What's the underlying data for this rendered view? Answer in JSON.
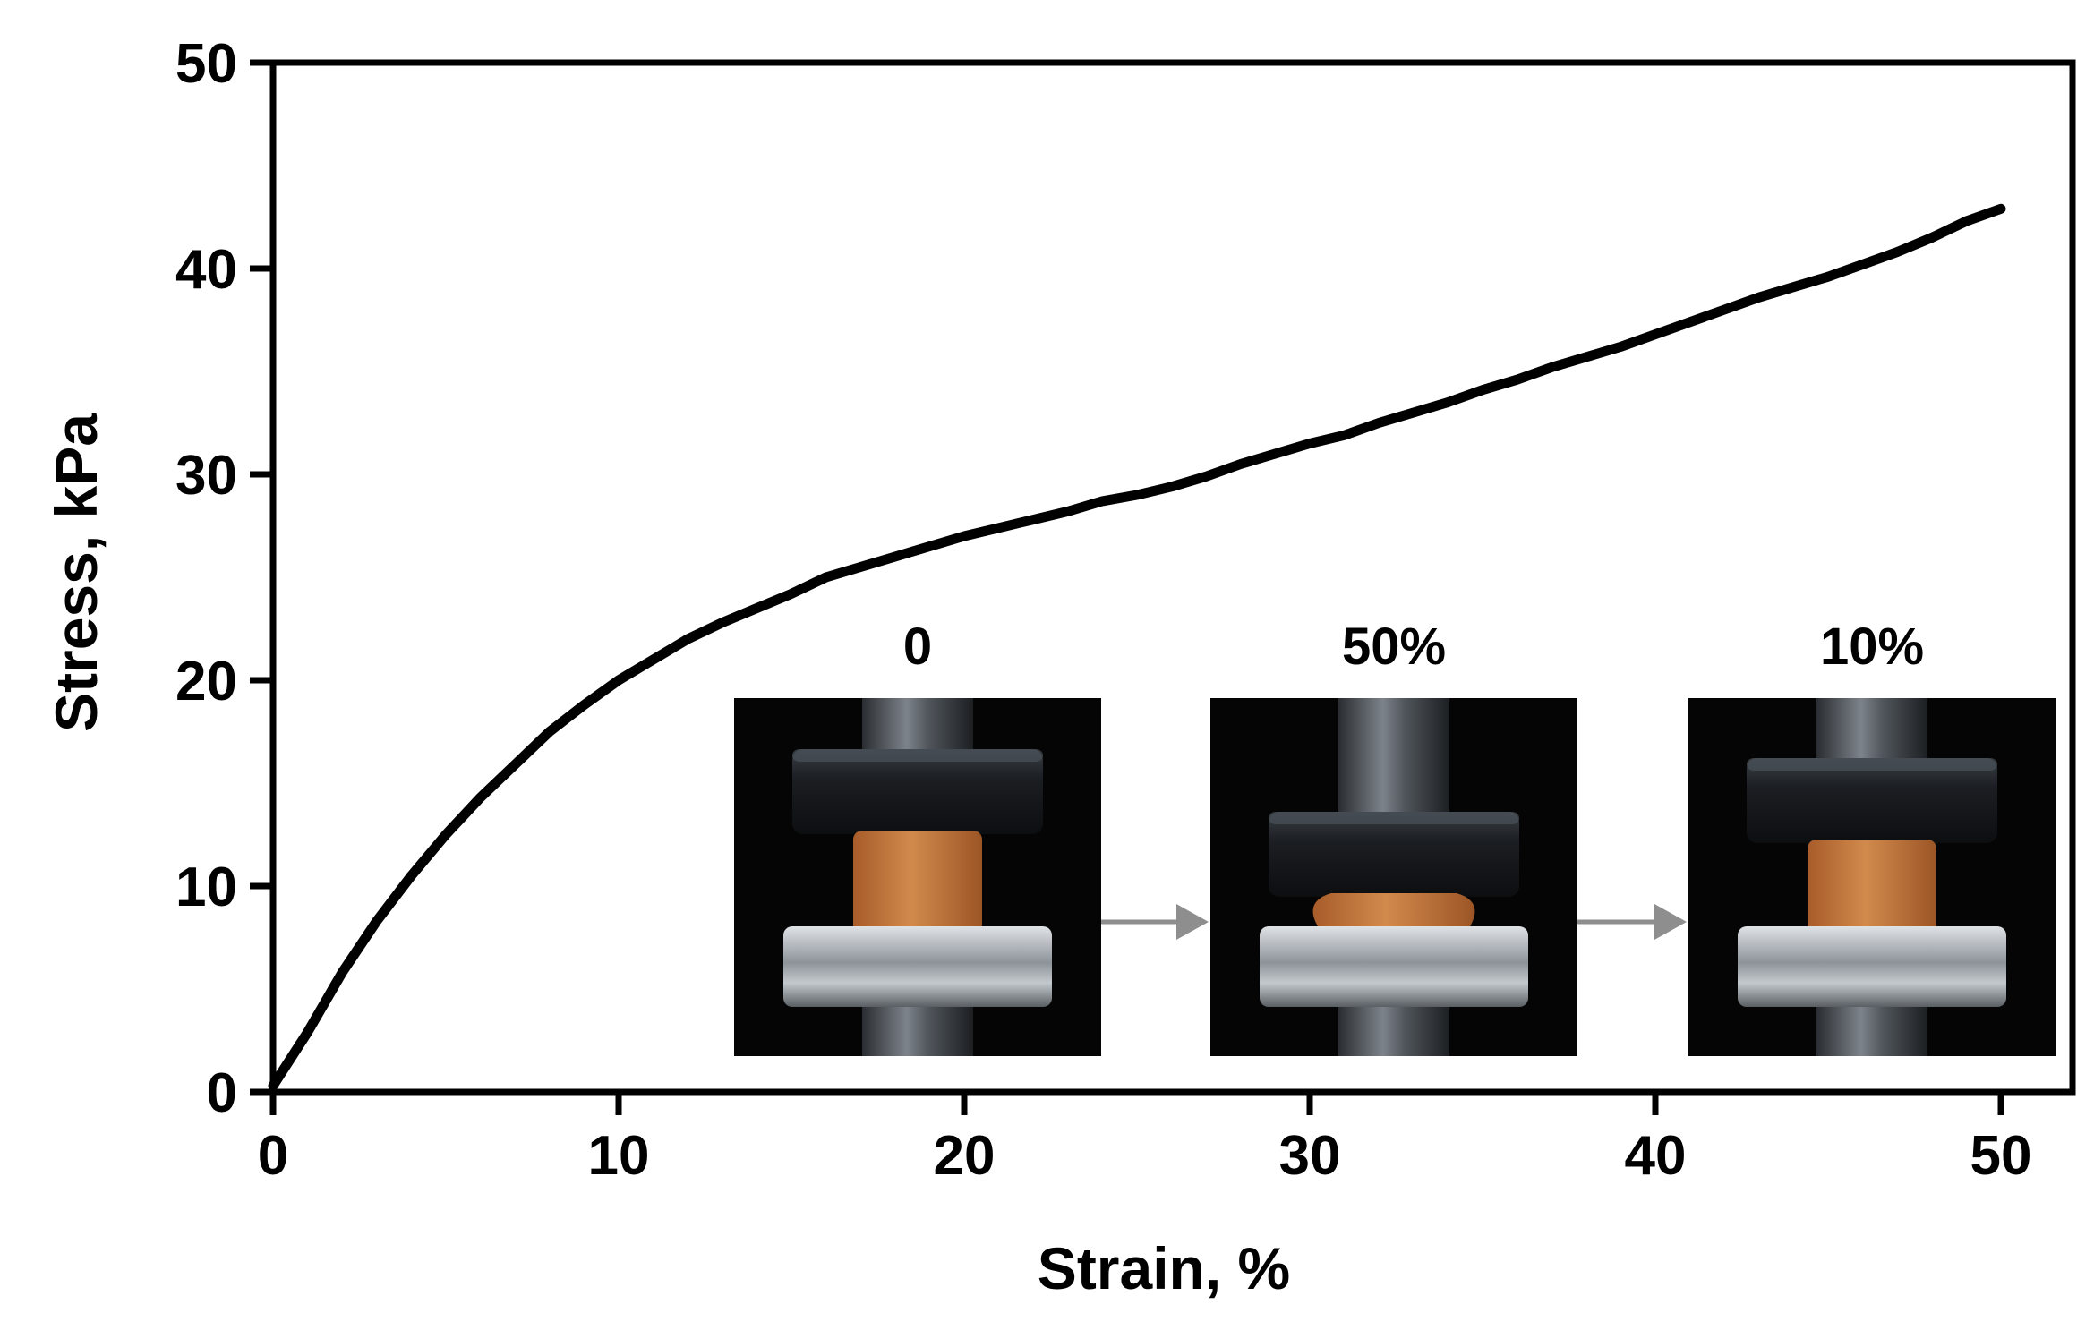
{
  "chart_data": {
    "type": "line",
    "title": "",
    "xlabel": "Strain, %",
    "ylabel": "Stress, kPa",
    "xlim": [
      0,
      52
    ],
    "ylim": [
      0,
      50
    ],
    "x_ticks": [
      "0",
      "10",
      "20",
      "30",
      "40",
      "50"
    ],
    "y_ticks": [
      "0",
      "10",
      "20",
      "30",
      "40",
      "50"
    ],
    "grid": false,
    "legend": "none",
    "series": [
      {
        "color": "#000000",
        "x": [
          0,
          1,
          2,
          3,
          4,
          5,
          6,
          7,
          8,
          9,
          10,
          11,
          12,
          13,
          14,
          15,
          16,
          17,
          18,
          19,
          20,
          21,
          22,
          23,
          24,
          25,
          26,
          27,
          28,
          29,
          30,
          31,
          32,
          33,
          34,
          35,
          36,
          37,
          38,
          39,
          40,
          41,
          42,
          43,
          44,
          45,
          46,
          47,
          48,
          49,
          50
        ],
        "y": [
          0.3,
          2.9,
          5.8,
          8.3,
          10.5,
          12.5,
          14.3,
          15.9,
          17.5,
          18.8,
          20.0,
          21.0,
          22.0,
          22.8,
          23.5,
          24.2,
          25.0,
          25.5,
          26.0,
          26.5,
          27.0,
          27.4,
          27.8,
          28.2,
          28.7,
          29.0,
          29.4,
          29.9,
          30.5,
          31.0,
          31.5,
          31.9,
          32.5,
          33.0,
          33.5,
          34.1,
          34.6,
          35.2,
          35.7,
          36.2,
          36.8,
          37.4,
          38.0,
          38.6,
          39.1,
          39.6,
          40.2,
          40.8,
          41.5,
          42.3,
          42.9
        ]
      }
    ],
    "inset_photos": {
      "labels": [
        "0",
        "50%",
        "10%"
      ],
      "foam_color": "#c77a3e",
      "platen_color": "#1b1e22",
      "base_color": "#a9aeb3",
      "background_color": "#050505",
      "arrow_color": "#8e8e8e"
    }
  }
}
